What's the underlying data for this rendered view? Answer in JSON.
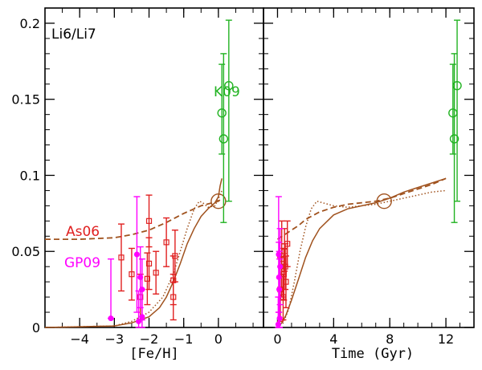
{
  "colors": {
    "model": "#a0521e",
    "red": "#e02020",
    "magenta": "#ff00ff",
    "green": "#22b322",
    "axis": "#000000"
  },
  "panel_label": "Li6/Li7",
  "annotations": {
    "k09": "K09",
    "as06": "As06",
    "gp09": "GP09"
  },
  "chart_data": [
    {
      "type": "line",
      "panel": "left",
      "xlabel": "[Fe/H]",
      "ylabel": "Li6/Li7",
      "xlim": [
        -5,
        1.3
      ],
      "ylim": [
        0,
        0.21
      ],
      "xticks": [
        -4,
        -3,
        -2,
        -1,
        0
      ],
      "xtick_labels": [
        "−4",
        "−3",
        "−2",
        "−1",
        "0"
      ],
      "yticks": [
        0,
        0.05,
        0.1,
        0.15,
        0.2
      ],
      "ytick_labels": [
        "0",
        "0.05",
        "0.1",
        "0.15",
        "0.2"
      ],
      "series": [
        {
          "name": "model-solid",
          "style": "solid",
          "points": [
            [
              -5,
              0
            ],
            [
              -4,
              0.0005
            ],
            [
              -3,
              0.001
            ],
            [
              -2.5,
              0.003
            ],
            [
              -2,
              0.007
            ],
            [
              -1.7,
              0.013
            ],
            [
              -1.5,
              0.02
            ],
            [
              -1.3,
              0.03
            ],
            [
              -1.1,
              0.042
            ],
            [
              -0.9,
              0.055
            ],
            [
              -0.7,
              0.065
            ],
            [
              -0.5,
              0.073
            ],
            [
              -0.3,
              0.078
            ],
            [
              -0.1,
              0.082
            ],
            [
              0,
              0.086
            ],
            [
              0.05,
              0.093
            ],
            [
              0.1,
              0.098
            ]
          ]
        },
        {
          "name": "model-dashed",
          "style": "dashed",
          "points": [
            [
              -5,
              0.058
            ],
            [
              -4,
              0.058
            ],
            [
              -3,
              0.059
            ],
            [
              -2.5,
              0.061
            ],
            [
              -2,
              0.064
            ],
            [
              -1.5,
              0.069
            ],
            [
              -1,
              0.075
            ],
            [
              -0.5,
              0.08
            ],
            [
              0,
              0.083
            ],
            [
              0.1,
              0.085
            ]
          ]
        },
        {
          "name": "model-dotted",
          "style": "dotted",
          "points": [
            [
              -5,
              0.0
            ],
            [
              -3,
              0.001
            ],
            [
              -2.5,
              0.004
            ],
            [
              -2,
              0.01
            ],
            [
              -1.6,
              0.02
            ],
            [
              -1.3,
              0.035
            ],
            [
              -1.1,
              0.05
            ],
            [
              -0.9,
              0.065
            ],
            [
              -0.7,
              0.078
            ],
            [
              -0.55,
              0.083
            ],
            [
              -0.45,
              0.082
            ],
            [
              -0.3,
              0.079
            ],
            [
              -0.1,
              0.08
            ],
            [
              0.05,
              0.087
            ],
            [
              0.1,
              0.09
            ]
          ]
        }
      ],
      "solar_point": {
        "x": 0,
        "y": 0.083
      },
      "red_points": [
        {
          "x": -2.8,
          "y": 0.046,
          "lo": 0.024,
          "hi": 0.068
        },
        {
          "x": -2.5,
          "y": 0.035,
          "lo": 0.018,
          "hi": 0.052
        },
        {
          "x": -2.25,
          "y": 0.02,
          "lo": 0.005,
          "hi": 0.035
        },
        {
          "x": -2.0,
          "y": 0.07,
          "lo": 0.053,
          "hi": 0.087
        },
        {
          "x": -2.0,
          "y": 0.042,
          "lo": 0.025,
          "hi": 0.059
        },
        {
          "x": -2.05,
          "y": 0.032,
          "lo": 0.015,
          "hi": 0.049
        },
        {
          "x": -1.8,
          "y": 0.036,
          "lo": 0.022,
          "hi": 0.05
        },
        {
          "x": -1.5,
          "y": 0.056,
          "lo": 0.04,
          "hi": 0.072
        },
        {
          "x": -1.3,
          "y": 0.02,
          "lo": 0.005,
          "hi": 0.035
        },
        {
          "x": -1.25,
          "y": 0.047,
          "lo": 0.03,
          "hi": 0.064
        },
        {
          "x": -1.3,
          "y": 0.031,
          "lo": 0.015,
          "hi": 0.047
        }
      ],
      "magenta_points": [
        {
          "x": -3.1,
          "y": 0.006,
          "lo": 0.006,
          "hi": 0.045
        },
        {
          "x": -2.35,
          "y": 0.048,
          "lo": 0.01,
          "hi": 0.086
        },
        {
          "x": -2.3,
          "y": 0.004,
          "lo": 0.0,
          "hi": 0.024
        },
        {
          "x": -2.25,
          "y": 0.033,
          "lo": 0.013,
          "hi": 0.053
        },
        {
          "x": -2.2,
          "y": 0.025,
          "lo": 0.005,
          "hi": 0.045
        },
        {
          "x": -2.2,
          "y": 0.007,
          "lo": 0.0,
          "hi": 0.025
        }
      ],
      "green_points": [
        {
          "x": 0.1,
          "y": 0.141,
          "lo": 0.114,
          "hi": 0.173
        },
        {
          "x": 0.15,
          "y": 0.124,
          "lo": 0.069,
          "hi": 0.18
        },
        {
          "x": 0.3,
          "y": 0.159,
          "lo": 0.083,
          "hi": 0.202
        }
      ]
    },
    {
      "type": "line",
      "panel": "right",
      "xlabel": "Time (Gyr)",
      "ylabel": "Li6/Li7",
      "xlim": [
        -1,
        14
      ],
      "ylim": [
        0,
        0.21
      ],
      "xticks": [
        0,
        4,
        8,
        12
      ],
      "xtick_labels": [
        "0",
        "4",
        "8",
        "12"
      ],
      "yticks": [
        0,
        0.05,
        0.1,
        0.15,
        0.2
      ],
      "series": [
        {
          "name": "model-solid",
          "style": "solid",
          "points": [
            [
              0,
              0
            ],
            [
              0.3,
              0.003
            ],
            [
              0.6,
              0.008
            ],
            [
              1,
              0.018
            ],
            [
              1.5,
              0.032
            ],
            [
              2,
              0.046
            ],
            [
              2.5,
              0.057
            ],
            [
              3,
              0.065
            ],
            [
              4,
              0.074
            ],
            [
              5,
              0.078
            ],
            [
              6,
              0.08
            ],
            [
              7,
              0.082
            ],
            [
              8,
              0.085
            ],
            [
              9,
              0.089
            ],
            [
              10,
              0.092
            ],
            [
              11,
              0.095
            ],
            [
              12,
              0.098
            ]
          ]
        },
        {
          "name": "model-dashed",
          "style": "dashed",
          "points": [
            [
              0,
              0.058
            ],
            [
              0.5,
              0.061
            ],
            [
              1,
              0.064
            ],
            [
              1.5,
              0.067
            ],
            [
              2,
              0.071
            ],
            [
              3,
              0.076
            ],
            [
              4,
              0.079
            ],
            [
              5,
              0.081
            ],
            [
              6,
              0.082
            ],
            [
              7,
              0.083
            ],
            [
              8,
              0.085
            ],
            [
              9,
              0.088
            ],
            [
              10,
              0.091
            ],
            [
              11,
              0.094
            ],
            [
              12,
              0.098
            ]
          ]
        },
        {
          "name": "model-dotted",
          "style": "dotted",
          "points": [
            [
              0,
              0.0
            ],
            [
              0.4,
              0.003
            ],
            [
              0.8,
              0.012
            ],
            [
              1.2,
              0.03
            ],
            [
              1.6,
              0.05
            ],
            [
              2,
              0.066
            ],
            [
              2.4,
              0.078
            ],
            [
              2.8,
              0.083
            ],
            [
              3.2,
              0.082
            ],
            [
              4,
              0.08
            ],
            [
              5,
              0.079
            ],
            [
              6,
              0.08
            ],
            [
              7,
              0.081
            ],
            [
              8,
              0.083
            ],
            [
              9,
              0.085
            ],
            [
              10,
              0.087
            ],
            [
              11,
              0.089
            ],
            [
              12,
              0.09
            ]
          ]
        }
      ],
      "solar_point": {
        "x": 7.6,
        "y": 0.083
      },
      "red_points": [
        {
          "x": 0.2,
          "y": 0.025,
          "lo": 0.004,
          "hi": 0.046
        },
        {
          "x": 0.3,
          "y": 0.045,
          "lo": 0.02,
          "hi": 0.07
        },
        {
          "x": 0.4,
          "y": 0.02,
          "lo": 0.005,
          "hi": 0.035
        },
        {
          "x": 0.45,
          "y": 0.035,
          "lo": 0.018,
          "hi": 0.052
        },
        {
          "x": 0.5,
          "y": 0.05,
          "lo": 0.037,
          "hi": 0.065
        },
        {
          "x": 0.55,
          "y": 0.04,
          "lo": 0.025,
          "hi": 0.055
        },
        {
          "x": 0.6,
          "y": 0.03,
          "lo": 0.013,
          "hi": 0.047
        },
        {
          "x": 0.7,
          "y": 0.055,
          "lo": 0.04,
          "hi": 0.07
        }
      ],
      "magenta_points": [
        {
          "x": 0.05,
          "y": 0.002,
          "lo": 0.0,
          "hi": 0.02
        },
        {
          "x": 0.08,
          "y": 0.048,
          "lo": 0.01,
          "hi": 0.086
        },
        {
          "x": 0.1,
          "y": 0.033,
          "lo": 0.01,
          "hi": 0.056
        },
        {
          "x": 0.12,
          "y": 0.025,
          "lo": 0.0,
          "hi": 0.05
        },
        {
          "x": 0.15,
          "y": 0.006,
          "lo": 0.0,
          "hi": 0.045
        },
        {
          "x": 0.18,
          "y": 0.04,
          "lo": 0.015,
          "hi": 0.065
        }
      ],
      "green_points": [
        {
          "x": 12.5,
          "y": 0.141,
          "lo": 0.114,
          "hi": 0.173
        },
        {
          "x": 12.6,
          "y": 0.124,
          "lo": 0.069,
          "hi": 0.18
        },
        {
          "x": 12.8,
          "y": 0.159,
          "lo": 0.083,
          "hi": 0.202
        }
      ]
    }
  ]
}
